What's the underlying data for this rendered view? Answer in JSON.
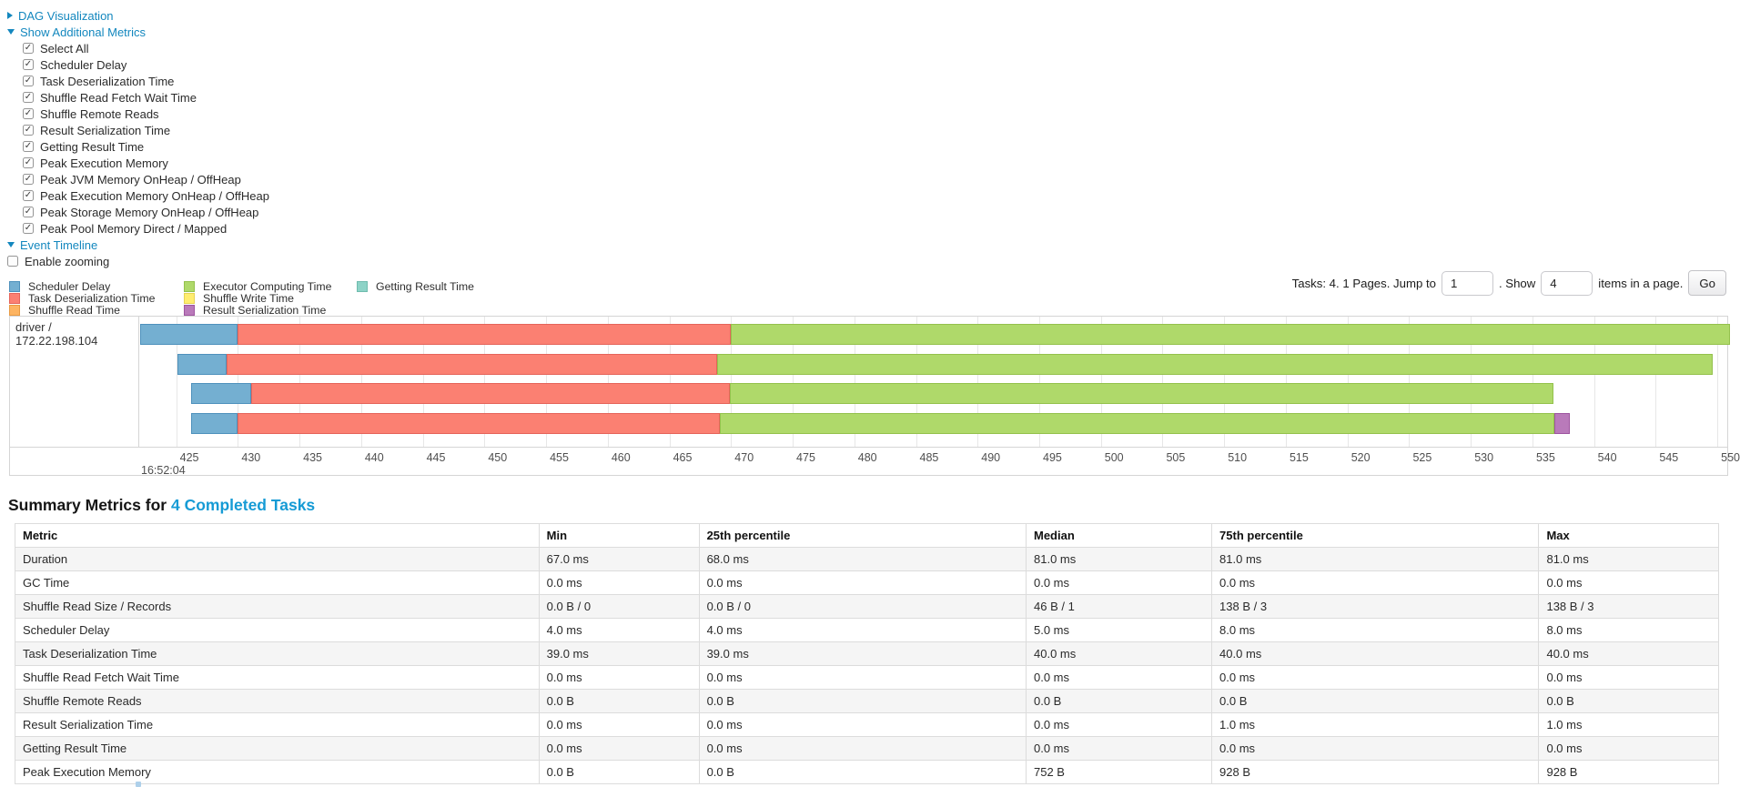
{
  "colors": {
    "link": "#1387BE",
    "title_link": "#169BD5",
    "border": "#D5D5D5",
    "grid": "#E7E7E7",
    "stripe": "#F5F5F5",
    "palette": {
      "scheduler_delay": {
        "fill": "#74AFD1",
        "border": "#4E91BC"
      },
      "task_deserialization": {
        "fill": "#FB8072",
        "border": "#E5645A"
      },
      "shuffle_read": {
        "fill": "#FDB462",
        "border": "#E89A43"
      },
      "executor_computing": {
        "fill": "#AFD96A",
        "border": "#94C14C"
      },
      "shuffle_write": {
        "fill": "#FFED6F",
        "border": "#E6D354"
      },
      "result_serialization": {
        "fill": "#B97ABA",
        "border": "#9E55A0"
      },
      "getting_result": {
        "fill": "#8DD3C7",
        "border": "#6FBCAE"
      }
    }
  },
  "toggles": {
    "dag": {
      "label": "DAG Visualization",
      "expanded": false
    },
    "metrics": {
      "label": "Show Additional Metrics",
      "expanded": true
    },
    "timeline": {
      "label": "Event Timeline",
      "expanded": true
    }
  },
  "metrics_panel": {
    "items": [
      "Select All",
      "Scheduler Delay",
      "Task Deserialization Time",
      "Shuffle Read Fetch Wait Time",
      "Shuffle Remote Reads",
      "Result Serialization Time",
      "Getting Result Time",
      "Peak Execution Memory",
      "Peak JVM Memory OnHeap / OffHeap",
      "Peak Execution Memory OnHeap / OffHeap",
      "Peak Storage Memory OnHeap / OffHeap",
      "Peak Pool Memory Direct / Mapped"
    ],
    "all_checked": true
  },
  "enable_zooming": {
    "label": "Enable zooming",
    "checked": false
  },
  "timeline": {
    "legend_columns": [
      [
        {
          "label": "Scheduler Delay",
          "key": "scheduler_delay"
        },
        {
          "label": "Task Deserialization Time",
          "key": "task_deserialization"
        },
        {
          "label": "Shuffle Read Time",
          "key": "shuffle_read"
        }
      ],
      [
        {
          "label": "Executor Computing Time",
          "key": "executor_computing"
        },
        {
          "label": "Shuffle Write Time",
          "key": "shuffle_write"
        },
        {
          "label": "Result Serialization Time",
          "key": "result_serialization"
        }
      ],
      [
        {
          "label": "Getting Result Time",
          "key": "getting_result"
        }
      ]
    ],
    "pagination": {
      "prefix": "Tasks: 4. 1 Pages. Jump to",
      "jump_value": "1",
      "mid": ". Show",
      "show_value": "4",
      "suffix": "items in a page.",
      "go_label": "Go"
    },
    "group_label": "driver / 172.22.198.104"
  },
  "chart_data": {
    "type": "timeline",
    "title": "Event Timeline",
    "x_unit": "milliseconds within second 16:52:04",
    "axis": {
      "min": 422.0,
      "max": 550.8,
      "tick_step": 5,
      "ticks": [
        425,
        430,
        435,
        440,
        445,
        450,
        455,
        460,
        465,
        470,
        475,
        480,
        485,
        490,
        495,
        500,
        505,
        510,
        515,
        520,
        525,
        530,
        535,
        540,
        545,
        550
      ],
      "base_time_label": "16:52:04"
    },
    "groups": [
      "driver / 172.22.198.104"
    ],
    "tasks": [
      {
        "segments": [
          {
            "key": "scheduler_delay",
            "start": 422.1,
            "end": 430.0
          },
          {
            "key": "task_deserialization",
            "start": 430.0,
            "end": 470.0
          },
          {
            "key": "executor_computing",
            "start": 470.0,
            "end": 551.0
          }
        ]
      },
      {
        "segments": [
          {
            "key": "scheduler_delay",
            "start": 425.1,
            "end": 429.1
          },
          {
            "key": "task_deserialization",
            "start": 429.1,
            "end": 468.9
          },
          {
            "key": "executor_computing",
            "start": 468.9,
            "end": 549.6
          }
        ]
      },
      {
        "segments": [
          {
            "key": "scheduler_delay",
            "start": 426.2,
            "end": 431.1
          },
          {
            "key": "task_deserialization",
            "start": 431.1,
            "end": 469.9
          },
          {
            "key": "executor_computing",
            "start": 469.9,
            "end": 536.7
          }
        ]
      },
      {
        "segments": [
          {
            "key": "scheduler_delay",
            "start": 426.2,
            "end": 430.0
          },
          {
            "key": "task_deserialization",
            "start": 430.0,
            "end": 469.1
          },
          {
            "key": "executor_computing",
            "start": 469.1,
            "end": 536.8
          },
          {
            "key": "result_serialization",
            "start": 536.8,
            "end": 538.0
          }
        ]
      }
    ]
  },
  "summary": {
    "title_prefix": "Summary Metrics for",
    "title_link": "4 Completed Tasks",
    "columns": [
      "Metric",
      "Min",
      "25th percentile",
      "Median",
      "75th percentile",
      "Max"
    ],
    "rows": [
      [
        "Duration",
        "67.0 ms",
        "68.0 ms",
        "81.0 ms",
        "81.0 ms",
        "81.0 ms"
      ],
      [
        "GC Time",
        "0.0 ms",
        "0.0 ms",
        "0.0 ms",
        "0.0 ms",
        "0.0 ms"
      ],
      [
        "Shuffle Read Size / Records",
        "0.0 B / 0",
        "0.0 B / 0",
        "46 B / 1",
        "138 B / 3",
        "138 B / 3"
      ],
      [
        "Scheduler Delay",
        "4.0 ms",
        "4.0 ms",
        "5.0 ms",
        "8.0 ms",
        "8.0 ms"
      ],
      [
        "Task Deserialization Time",
        "39.0 ms",
        "39.0 ms",
        "40.0 ms",
        "40.0 ms",
        "40.0 ms"
      ],
      [
        "Shuffle Read Fetch Wait Time",
        "0.0 ms",
        "0.0 ms",
        "0.0 ms",
        "0.0 ms",
        "0.0 ms"
      ],
      [
        "Shuffle Remote Reads",
        "0.0 B",
        "0.0 B",
        "0.0 B",
        "0.0 B",
        "0.0 B"
      ],
      [
        "Result Serialization Time",
        "0.0 ms",
        "0.0 ms",
        "0.0 ms",
        "1.0 ms",
        "1.0 ms"
      ],
      [
        "Getting Result Time",
        "0.0 ms",
        "0.0 ms",
        "0.0 ms",
        "0.0 ms",
        "0.0 ms"
      ],
      [
        "Peak Execution Memory",
        "0.0 B",
        "0.0 B",
        "752 B",
        "928 B",
        "928 B"
      ]
    ]
  }
}
